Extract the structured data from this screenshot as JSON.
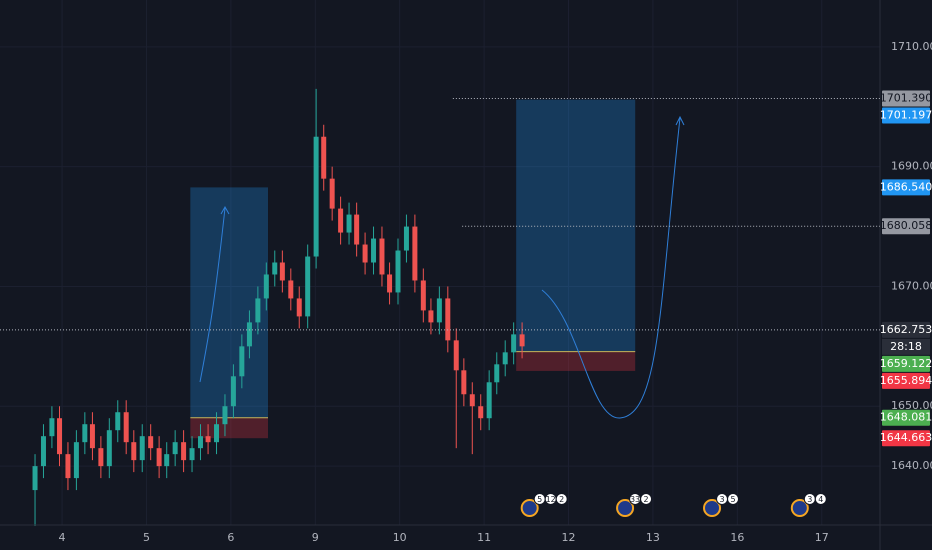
{
  "chart_data": {
    "type": "candlestick",
    "x": [
      -0.32,
      -0.22,
      -0.12,
      -0.03,
      0.07,
      0.17,
      0.27,
      0.36,
      0.46,
      0.56,
      0.66,
      0.76,
      0.85,
      0.95,
      1.05,
      1.15,
      1.24,
      1.34,
      1.44,
      1.54,
      1.64,
      1.73,
      1.83,
      1.93,
      2.03,
      2.13,
      2.22,
      2.32,
      2.42,
      2.52,
      2.61,
      2.71,
      2.81,
      2.91,
      3.01,
      3.1,
      3.2,
      3.3,
      3.4,
      3.49,
      3.59,
      3.69,
      3.79,
      3.88,
      3.98,
      4.08,
      4.18,
      4.28,
      4.37,
      4.47,
      4.57,
      4.67,
      4.76,
      4.86,
      4.96,
      5.06,
      5.15,
      5.25,
      5.35,
      5.45
    ],
    "open": [
      1636,
      1640,
      1645,
      1648,
      1642,
      1638,
      1644,
      1647,
      1643,
      1640,
      1646,
      1649,
      1644,
      1641,
      1645,
      1643,
      1640,
      1642,
      1644,
      1641,
      1643,
      1645,
      1644,
      1647,
      1650,
      1655,
      1660,
      1664,
      1668,
      1672,
      1674,
      1671,
      1668,
      1665,
      1675,
      1695,
      1688,
      1683,
      1679,
      1682,
      1677,
      1674,
      1678,
      1672,
      1669,
      1676,
      1680,
      1671,
      1666,
      1664,
      1668,
      1661,
      1656,
      1652,
      1650,
      1648,
      1654,
      1657,
      1659,
      1662
    ],
    "high": [
      1642,
      1647,
      1650,
      1650,
      1644,
      1646,
      1649,
      1649,
      1645,
      1648,
      1651,
      1651,
      1646,
      1647,
      1647,
      1645,
      1644,
      1646,
      1646,
      1645,
      1647,
      1647,
      1649,
      1652,
      1657,
      1662,
      1666,
      1670,
      1674,
      1676,
      1676,
      1673,
      1670,
      1677,
      1703,
      1697,
      1690,
      1685,
      1684,
      1684,
      1679,
      1680,
      1680,
      1674,
      1678,
      1682,
      1682,
      1673,
      1668,
      1670,
      1670,
      1663,
      1658,
      1654,
      1652,
      1656,
      1659,
      1661,
      1664,
      1664
    ],
    "low": [
      1630,
      1638,
      1643,
      1640,
      1636,
      1636,
      1642,
      1641,
      1638,
      1638,
      1644,
      1642,
      1639,
      1639,
      1641,
      1638,
      1638,
      1640,
      1639,
      1639,
      1641,
      1642,
      1642,
      1645,
      1648,
      1653,
      1658,
      1662,
      1666,
      1670,
      1669,
      1666,
      1663,
      1663,
      1673,
      1686,
      1681,
      1677,
      1677,
      1675,
      1672,
      1672,
      1670,
      1667,
      1667,
      1674,
      1669,
      1664,
      1662,
      1662,
      1659,
      1643,
      1650,
      1642,
      1646,
      1646,
      1652,
      1655,
      1657,
      1658
    ],
    "close": [
      1640,
      1645,
      1648,
      1642,
      1638,
      1644,
      1647,
      1643,
      1640,
      1646,
      1649,
      1644,
      1641,
      1645,
      1643,
      1640,
      1642,
      1644,
      1641,
      1643,
      1645,
      1644,
      1647,
      1650,
      1655,
      1660,
      1664,
      1668,
      1672,
      1674,
      1671,
      1668,
      1665,
      1675,
      1695,
      1688,
      1683,
      1679,
      1682,
      1677,
      1674,
      1678,
      1672,
      1669,
      1676,
      1680,
      1671,
      1666,
      1664,
      1668,
      1661,
      1656,
      1652,
      1650,
      1648,
      1654,
      1657,
      1659,
      1662,
      1660
    ],
    "up_color": "#26a69a",
    "down_color": "#ef5350",
    "xlim": [
      -0.735,
      9.69
    ],
    "xticks": [
      {
        "value": 0,
        "label": "4"
      },
      {
        "value": 1,
        "label": "5"
      },
      {
        "value": 2,
        "label": "6"
      },
      {
        "value": 3,
        "label": "9"
      },
      {
        "value": 4,
        "label": "10"
      },
      {
        "value": 5,
        "label": "11"
      },
      {
        "value": 6,
        "label": "12"
      },
      {
        "value": 7,
        "label": "13"
      },
      {
        "value": 8,
        "label": "16"
      },
      {
        "value": 9,
        "label": "17"
      }
    ],
    "ylim": [
      1630.17,
      1717.83
    ],
    "yticks": [
      {
        "value": 1640,
        "label": "1640.000"
      },
      {
        "value": 1650,
        "label": "1650.000"
      },
      {
        "value": 1670,
        "label": "1670.000"
      },
      {
        "value": 1690,
        "label": "1690.000"
      },
      {
        "value": 1710,
        "label": "1710.000"
      }
    ],
    "grid": true,
    "positions": [
      {
        "x0": 1.52,
        "x1": 2.44,
        "entry": 1648.081,
        "target": 1686.54,
        "stop": 1644.663
      },
      {
        "x0": 5.38,
        "x1": 6.79,
        "entry": 1659.122,
        "target": 1701.197,
        "stop": 1655.894
      }
    ],
    "price_labels": [
      {
        "value": 1701.39,
        "label": "1701.390",
        "color": "#9598a1",
        "line_from": 4.63
      },
      {
        "value": 1701.197,
        "label": "1701.197",
        "color": "#2196f3"
      },
      {
        "value": 1686.54,
        "label": "1686.540",
        "color": "#2196f3"
      },
      {
        "value": 1680.058,
        "label": "1680.058",
        "color": "#9598a1",
        "line_from": 4.74
      },
      {
        "value": 1662.753,
        "label": "1662.753",
        "color": "#2a2e39",
        "line_from": -0.735
      },
      {
        "value": 1659.122,
        "label": "1659.122",
        "color": "#4caf50"
      },
      {
        "value": 1655.894,
        "label": "1655.894",
        "color": "#f23645"
      },
      {
        "value": 1648.081,
        "label": "1648.081",
        "color": "#4caf50"
      },
      {
        "value": 1644.663,
        "label": "1644.663",
        "color": "#f23645"
      }
    ],
    "countdown": "28:18",
    "events": [
      {
        "x": 5.54,
        "labels": [
          "5",
          "12",
          "2"
        ]
      },
      {
        "x": 6.67,
        "labels": [
          "33",
          "2"
        ]
      },
      {
        "x": 7.7,
        "labels": [
          "3",
          "5"
        ]
      },
      {
        "x": 8.74,
        "labels": [
          "3",
          "4"
        ]
      }
    ]
  }
}
